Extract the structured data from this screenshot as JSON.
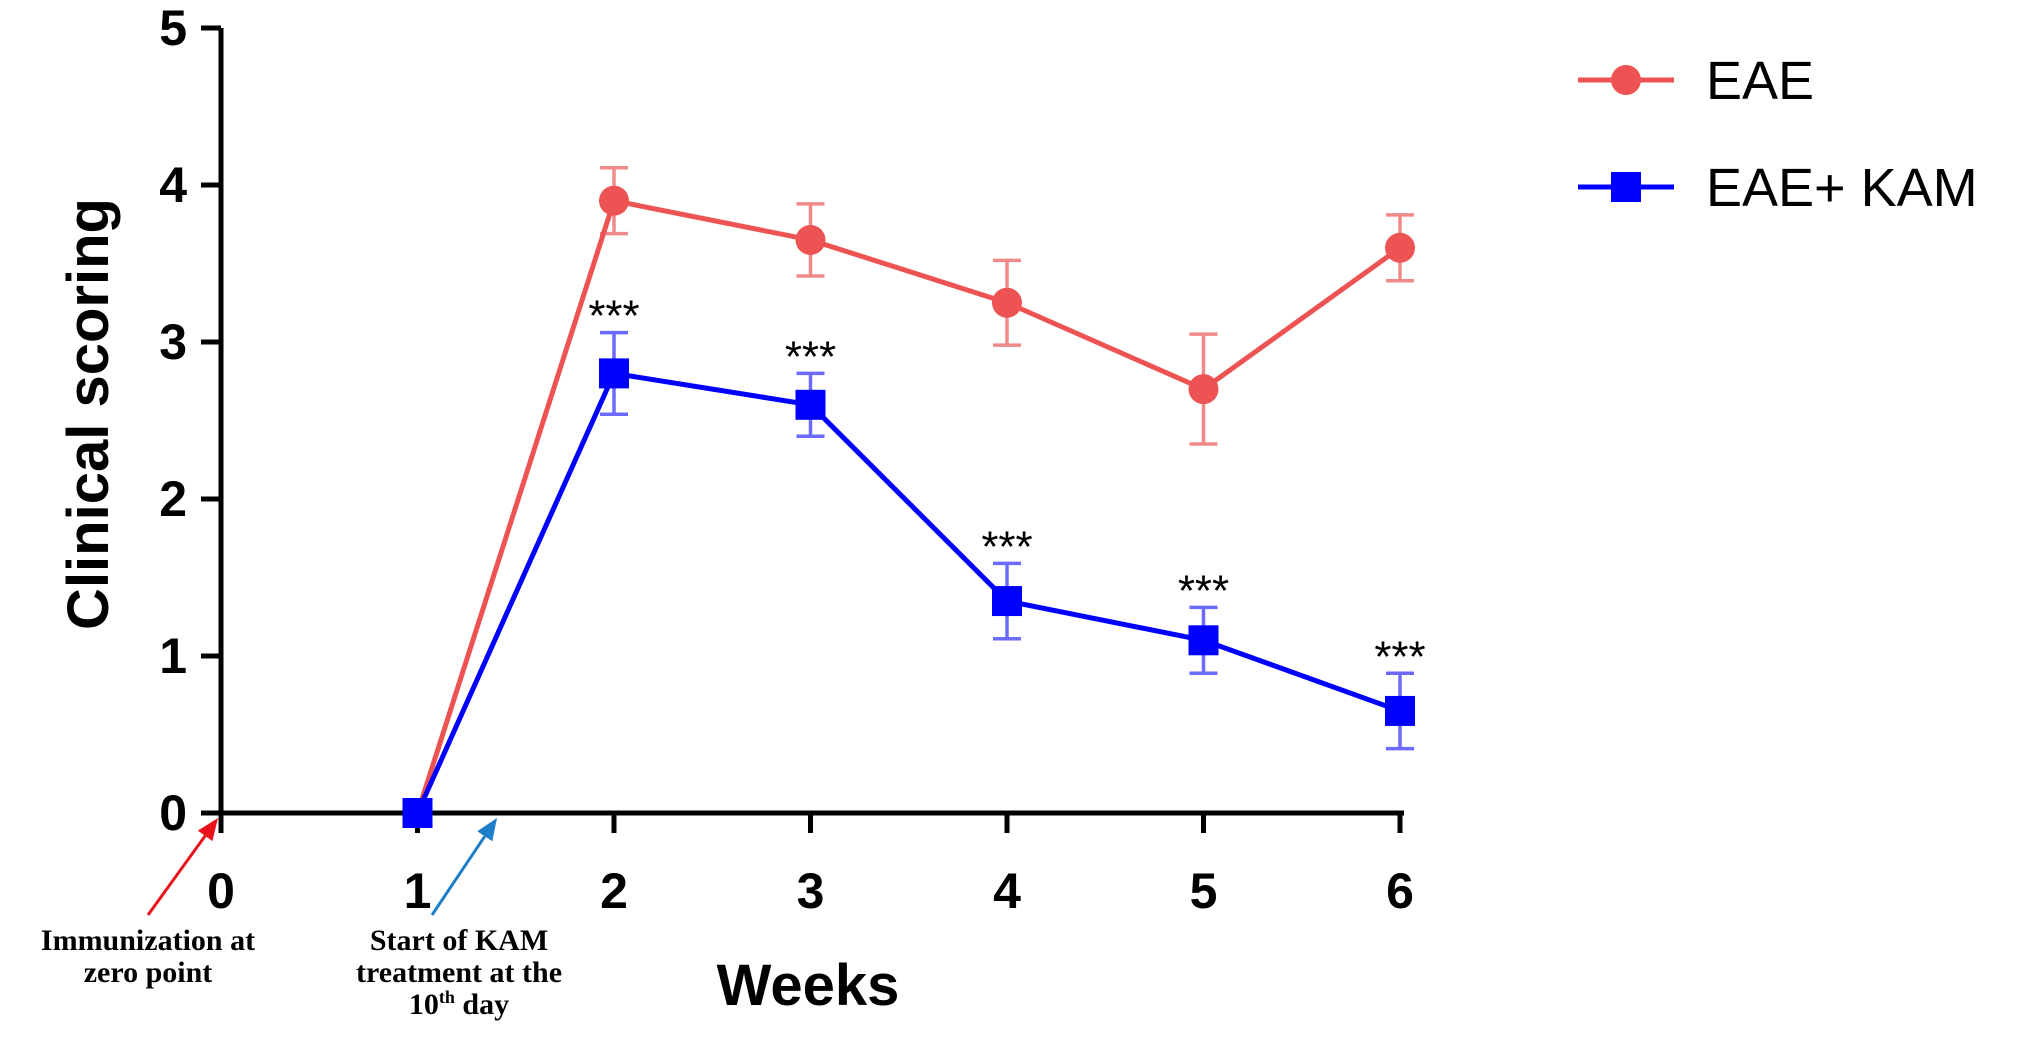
{
  "chart_data": {
    "type": "line",
    "title": "",
    "xlabel": "Weeks",
    "ylabel": "Clinical scoring",
    "x": [
      1,
      2,
      3,
      4,
      5,
      6
    ],
    "xlim": [
      0,
      6
    ],
    "ylim": [
      0,
      5
    ],
    "xticks": [
      "0",
      "1",
      "2",
      "3",
      "4",
      "5",
      "6"
    ],
    "yticks": [
      "0",
      "1",
      "2",
      "3",
      "4",
      "5"
    ],
    "grid": false,
    "legend_position": "top-right",
    "series": [
      {
        "name": "EAE",
        "color": "#ee5353",
        "marker": "circle",
        "values": [
          0,
          3.9,
          3.65,
          3.25,
          2.7,
          3.6
        ],
        "errors": [
          0,
          0.21,
          0.23,
          0.27,
          0.35,
          0.21
        ]
      },
      {
        "name": "EAE+ KAM",
        "color": "#0000ff",
        "marker": "square",
        "values": [
          0,
          2.8,
          2.6,
          1.35,
          1.1,
          0.65
        ],
        "errors": [
          0,
          0.26,
          0.2,
          0.24,
          0.21,
          0.24
        ]
      }
    ],
    "significance": {
      "label": "***",
      "x": [
        2,
        3,
        4,
        5,
        6
      ]
    },
    "annotations": [
      {
        "id": "immunization",
        "x": 0,
        "color": "#e8131b",
        "lines": [
          "Immunization at",
          "zero point"
        ]
      },
      {
        "id": "kam-start",
        "x": 1.42,
        "color": "#1e7ec8",
        "line1": "Start of KAM",
        "line2": "treatment at the",
        "line3_pre": "10",
        "line3_sup": "th",
        "line3_post": " day"
      }
    ]
  }
}
